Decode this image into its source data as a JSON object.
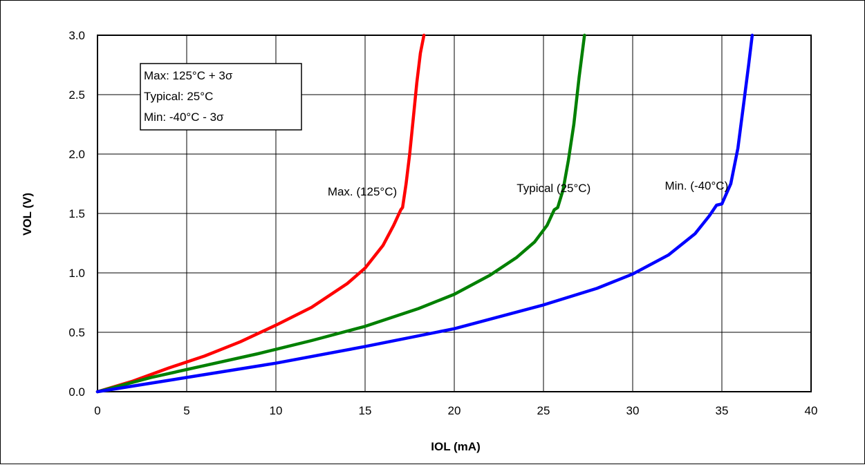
{
  "chart_data": {
    "type": "line",
    "title": "",
    "xlabel": "IOL (mA)",
    "ylabel": "VOL (V)",
    "xlim": [
      0,
      40
    ],
    "ylim": [
      0,
      3.0
    ],
    "xticks": [
      "0",
      "5",
      "10",
      "15",
      "20",
      "25",
      "30",
      "35",
      "40"
    ],
    "yticks": [
      "0.0",
      "0.5",
      "1.0",
      "1.5",
      "2.0",
      "2.5",
      "3.0"
    ],
    "grid": true,
    "legend_box": {
      "lines": [
        "Max: 125°C + 3σ",
        "Typical: 25°C",
        "Min: -40°C - 3σ"
      ],
      "placement": "top-left"
    },
    "series": [
      {
        "name": "Max. (125°C)",
        "color": "#ff0000",
        "points": [
          [
            0,
            0
          ],
          [
            2,
            0.09
          ],
          [
            4,
            0.2
          ],
          [
            6,
            0.3
          ],
          [
            8,
            0.42
          ],
          [
            10,
            0.56
          ],
          [
            12,
            0.71
          ],
          [
            14,
            0.91
          ],
          [
            15,
            1.04
          ],
          [
            16,
            1.23
          ],
          [
            16.6,
            1.4
          ],
          [
            17,
            1.53
          ],
          [
            17.1,
            1.55
          ],
          [
            17.3,
            1.75
          ],
          [
            17.5,
            2.0
          ],
          [
            17.7,
            2.3
          ],
          [
            17.9,
            2.6
          ],
          [
            18.1,
            2.85
          ],
          [
            18.3,
            3.0
          ]
        ]
      },
      {
        "name": "Typical (25°C)",
        "color": "#008000",
        "points": [
          [
            0,
            0
          ],
          [
            3,
            0.12
          ],
          [
            6,
            0.22
          ],
          [
            9,
            0.32
          ],
          [
            12,
            0.43
          ],
          [
            15,
            0.55
          ],
          [
            18,
            0.7
          ],
          [
            20,
            0.82
          ],
          [
            22,
            0.98
          ],
          [
            23.5,
            1.13
          ],
          [
            24.5,
            1.26
          ],
          [
            25.2,
            1.4
          ],
          [
            25.6,
            1.53
          ],
          [
            25.8,
            1.55
          ],
          [
            26.1,
            1.7
          ],
          [
            26.4,
            1.95
          ],
          [
            26.7,
            2.25
          ],
          [
            27.0,
            2.65
          ],
          [
            27.3,
            3.0
          ]
        ]
      },
      {
        "name": "Min. (-40°C)",
        "color": "#0000ff",
        "points": [
          [
            0,
            0
          ],
          [
            5,
            0.12
          ],
          [
            10,
            0.24
          ],
          [
            15,
            0.38
          ],
          [
            20,
            0.53
          ],
          [
            25,
            0.73
          ],
          [
            28,
            0.87
          ],
          [
            30,
            0.99
          ],
          [
            32,
            1.15
          ],
          [
            33.5,
            1.33
          ],
          [
            34.3,
            1.48
          ],
          [
            34.7,
            1.57
          ],
          [
            35.0,
            1.58
          ],
          [
            35.5,
            1.75
          ],
          [
            35.9,
            2.05
          ],
          [
            36.2,
            2.4
          ],
          [
            36.5,
            2.75
          ],
          [
            36.7,
            3.0
          ]
        ]
      }
    ],
    "annotations": [
      {
        "text": "Max. (125°C)",
        "x": 12.9,
        "y": 1.65
      },
      {
        "text": "Typical (25°C)",
        "x": 23.5,
        "y": 1.68
      },
      {
        "text": "Min. (-40°C)",
        "x": 31.8,
        "y": 1.7
      }
    ]
  }
}
